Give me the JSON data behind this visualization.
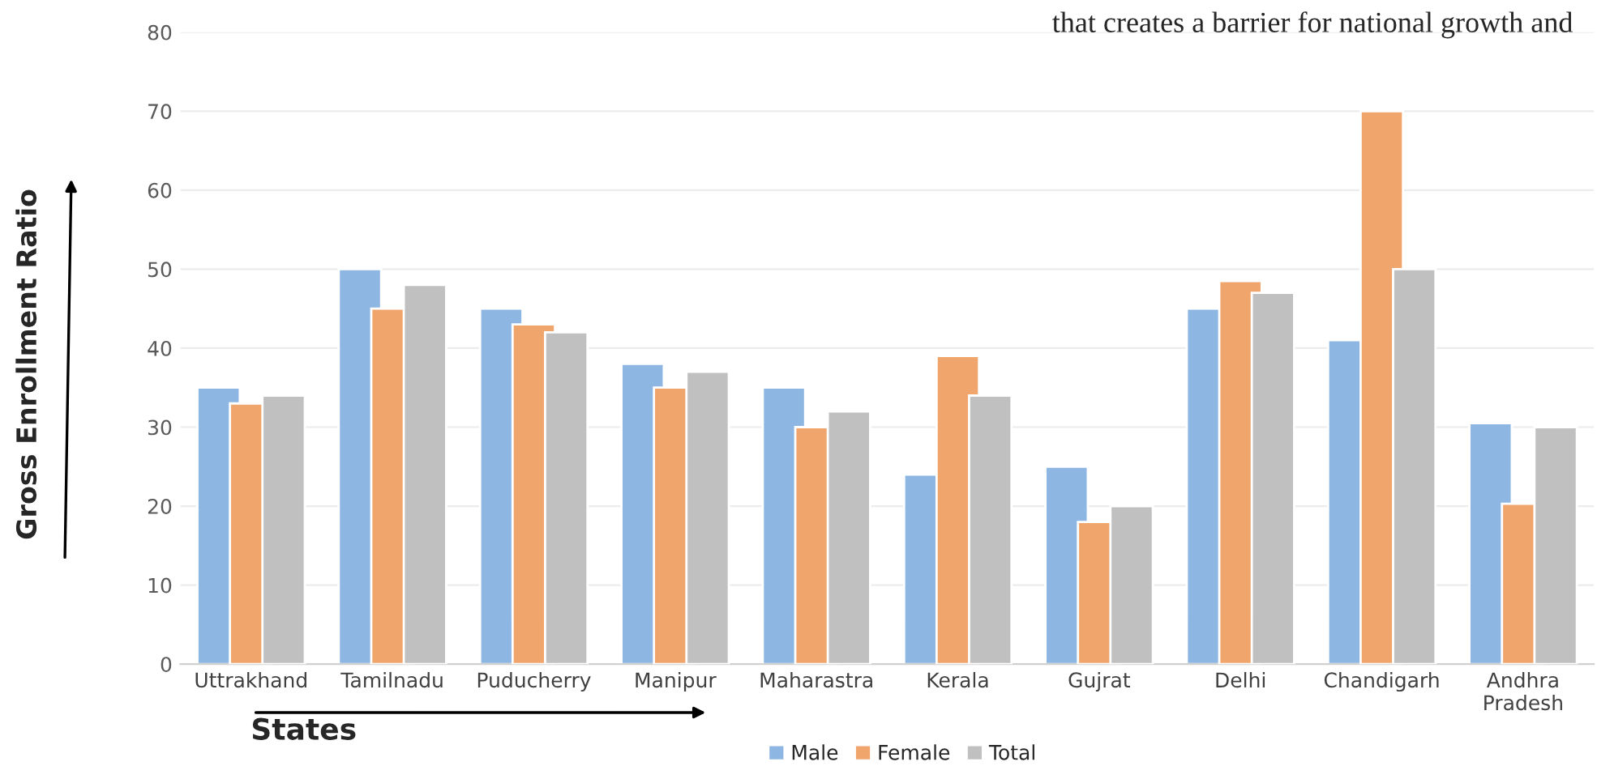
{
  "chart_data": {
    "type": "bar",
    "xlabel": "States",
    "ylabel": "Gross Enrollment Ratio",
    "annotations": [
      "that creates a barrier for national growth and"
    ],
    "categories": [
      "Uttrakhand",
      "Tamilnadu",
      "Puducherry",
      "Manipur",
      "Maharastra",
      "Kerala",
      "Gujrat",
      "Delhi",
      "Chandigarh",
      "Andhra\nPradesh"
    ],
    "series": [
      {
        "name": "Male",
        "color": "#8db7e2",
        "values": [
          35,
          50,
          45,
          38,
          35,
          24,
          25,
          45,
          41,
          30.5
        ]
      },
      {
        "name": "Female",
        "color": "#f0a56c",
        "values": [
          33,
          45,
          43,
          35,
          30,
          39,
          18,
          48.5,
          70,
          20.3
        ]
      },
      {
        "name": "Total",
        "color": "#c0c0c0",
        "values": [
          34,
          48,
          42,
          37,
          32,
          34,
          20,
          47,
          50,
          30
        ]
      }
    ],
    "ylim": [
      0,
      80
    ],
    "yticks": [
      0,
      10,
      20,
      30,
      40,
      50,
      60,
      70,
      80
    ],
    "grid": "y",
    "legend": "bottom"
  }
}
